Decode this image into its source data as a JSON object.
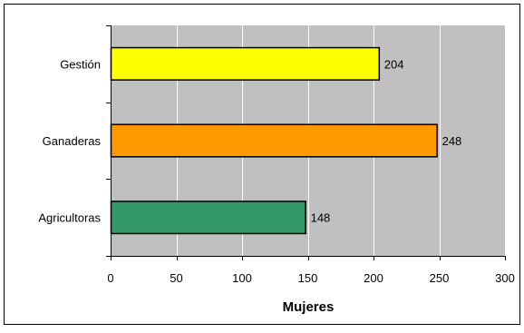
{
  "chart_data": {
    "type": "bar",
    "orientation": "horizontal",
    "categories": [
      "Gestión",
      "Ganaderas",
      "Agricultoras"
    ],
    "values": [
      204,
      248,
      148
    ],
    "bar_colors": [
      "#FFFF00",
      "#FF9900",
      "#339966"
    ],
    "bar_edge_color": "#000000",
    "data_labels": [
      "204",
      "248",
      "148"
    ],
    "xlabel": "Mujeres",
    "ylabel": "",
    "title": "",
    "xlim": [
      0,
      300
    ],
    "x_ticks": [
      0,
      50,
      100,
      150,
      200,
      250,
      300
    ],
    "grid": "vertical",
    "legend": "none",
    "plot_background": "#C0C0C0",
    "frame_background": "#FFFFFF",
    "grid_color": "#FFFFFF"
  }
}
